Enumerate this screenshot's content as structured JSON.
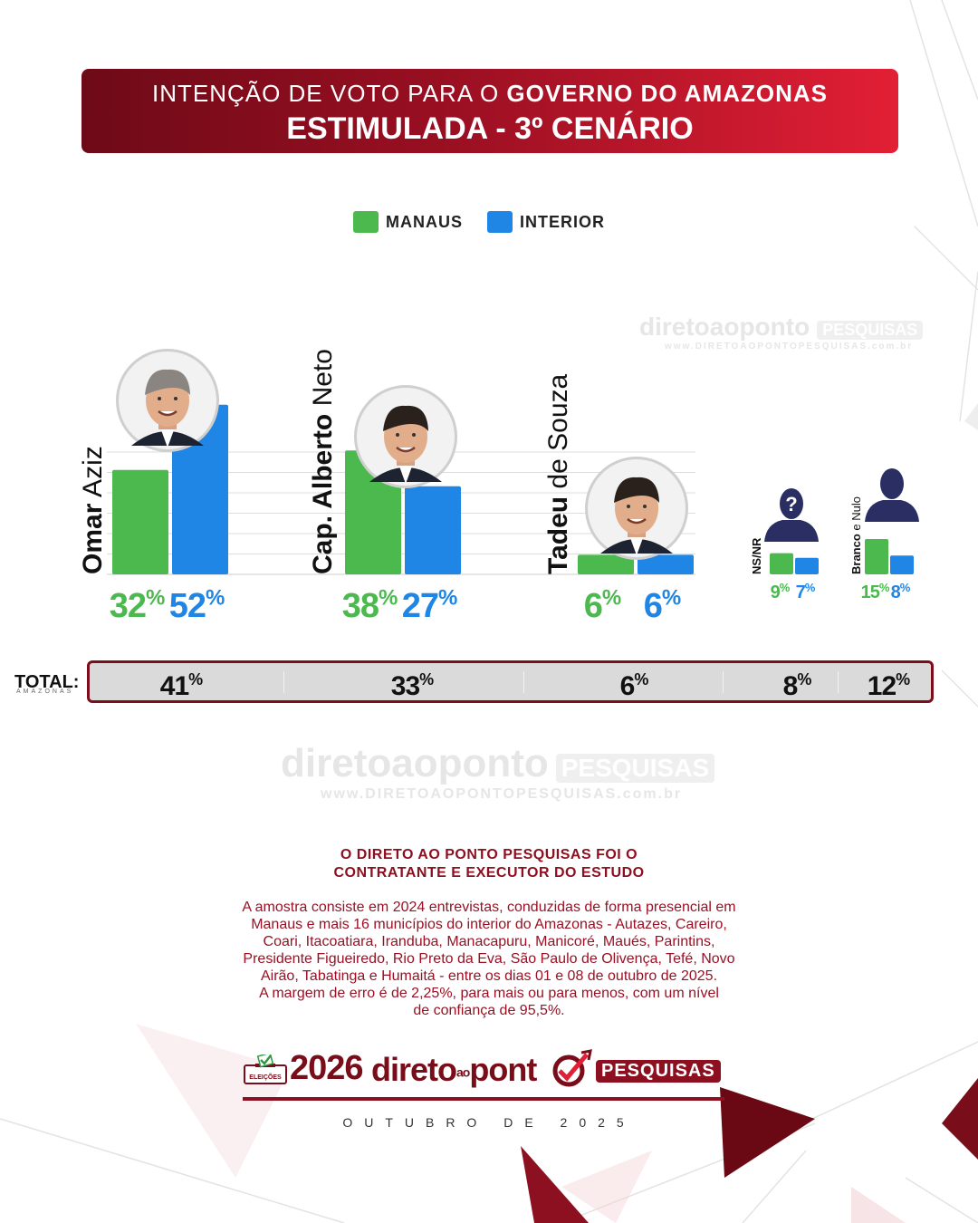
{
  "header": {
    "line1_prefix": "INTENÇÃO DE VOTO PARA O",
    "line1_bold": "GOVERNO DO AMAZONAS",
    "line2": "ESTIMULADA - 3º CENÁRIO"
  },
  "legend": {
    "manaus": "MANAUS",
    "interior": "INTERIOR"
  },
  "colors": {
    "manaus": "#4cb94f",
    "interior": "#1f86e6",
    "header_dark": "#6e0a17",
    "header_light": "#e21f35",
    "brand": "#8c1020"
  },
  "chart_data": {
    "type": "bar",
    "title": "INTENÇÃO DE VOTO PARA O GOVERNO DO AMAZONAS — ESTIMULADA - 3º CENÁRIO",
    "categories": [
      "Omar Aziz",
      "Cap. Alberto Neto",
      "Tadeu de Souza",
      "NS/NR",
      "Branco e Nulo"
    ],
    "series": [
      {
        "name": "MANAUS",
        "values": [
          32,
          38,
          6,
          9,
          15
        ]
      },
      {
        "name": "INTERIOR",
        "values": [
          52,
          27,
          6,
          7,
          8
        ]
      }
    ],
    "total_label": "TOTAL:",
    "total_sublabel": "AMAZONAS",
    "totals": [
      41,
      33,
      6,
      8,
      12
    ],
    "unit": "%",
    "legend_position": "top-center",
    "grid": true
  },
  "candidates": [
    {
      "first": "Omar",
      "rest": "Aziz",
      "avatar": "photo"
    },
    {
      "first": "Cap. Alberto",
      "rest": "Neto",
      "avatar": "photo"
    },
    {
      "first": "Tadeu",
      "rest": "de Souza",
      "avatar": "photo"
    },
    {
      "first": "NS/NR",
      "rest": "",
      "avatar": "question-silhouette"
    },
    {
      "first": "Branco",
      "rest": "e Nulo",
      "avatar": "silhouette"
    }
  ],
  "watermark": {
    "name": "diretoaoponto",
    "pill": "PESQUISAS",
    "url": "www.DIRETOAOPONTOPESQUISAS.com.br"
  },
  "study": {
    "title_line1": "O DIRETO AO PONTO PESQUISAS FOI O",
    "title_line2": "CONTRATANTE E EXECUTOR DO ESTUDO",
    "body": [
      "A amostra consiste em 2024 entrevistas, conduzidas de forma presencial em",
      "Manaus e mais 16 municípios do interior do Amazonas - Autazes, Careiro,",
      "Coari, Itacoatiara, Iranduba, Manacapuru, Manicoré, Maués, Parintins,",
      "Presidente Figueiredo, Rio Preto da Eva, São Paulo de Olivença, Tefé, Novo",
      "Airão, Tabatinga e Humaitá - entre os dias 01 e 08 de outubro de 2025.",
      "A margem de erro é de 2,25%, para mais ou para menos, com um nível",
      "de confiança de 95,5%."
    ]
  },
  "footer": {
    "ballot_label": "ELEIÇÕES",
    "year": "2026",
    "brand_a": "direto",
    "brand_b": "ao",
    "brand_c": "pont",
    "brand_pill": "PESQUISAS",
    "date": "OUTUBRO DE 2025"
  }
}
